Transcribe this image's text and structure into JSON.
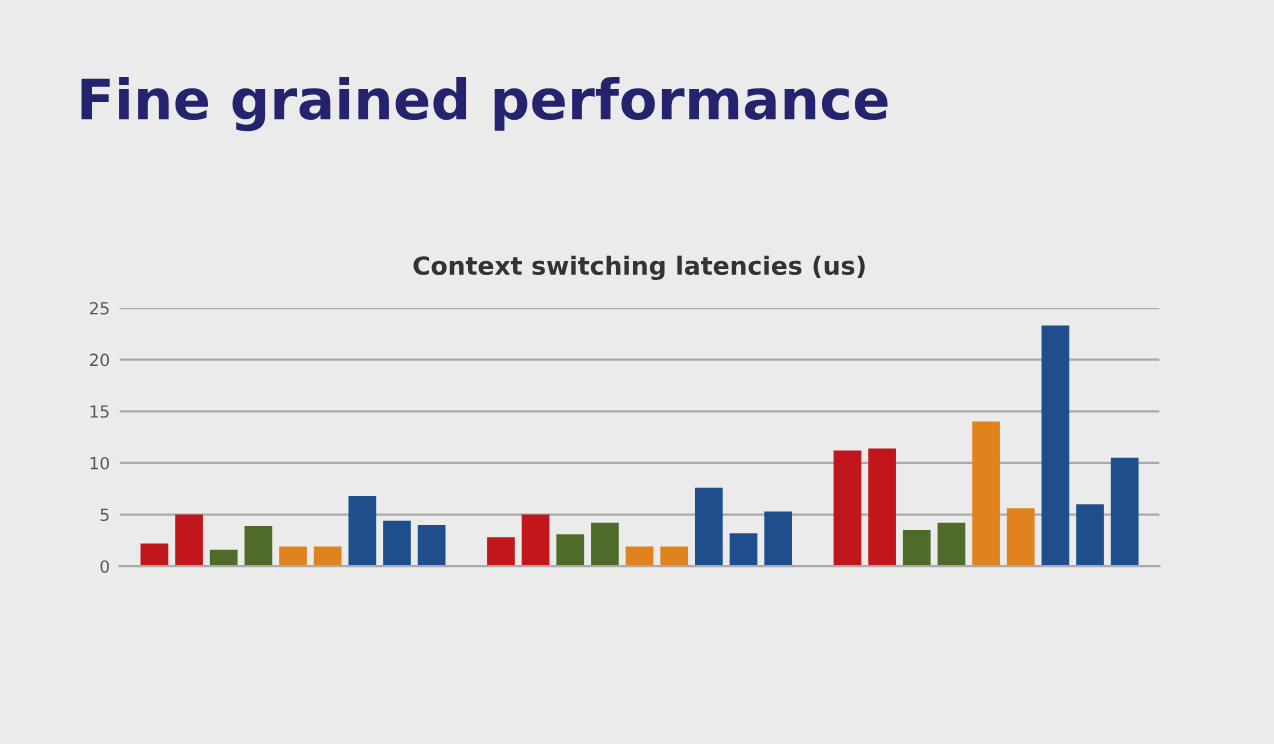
{
  "chart_data": {
    "type": "bar",
    "title": "Fine grained performance",
    "subtitle": "Context switching latencies (us)",
    "categories": [
      null,
      null,
      null
    ],
    "series": [
      {
        "color": "#c0161c",
        "values": [
          2.2,
          2.8,
          11.2
        ]
      },
      {
        "color": "#c0161c",
        "values": [
          5.0,
          5.0,
          11.4
        ]
      },
      {
        "color": "#4e6b2a",
        "values": [
          1.6,
          3.1,
          3.5
        ]
      },
      {
        "color": "#4e6b2a",
        "values": [
          3.9,
          4.2,
          4.2
        ]
      },
      {
        "color": "#e0821e",
        "values": [
          1.9,
          1.9,
          14.0
        ]
      },
      {
        "color": "#e0821e",
        "values": [
          1.9,
          1.9,
          5.6
        ]
      },
      {
        "color": "#1f4e8c",
        "values": [
          6.8,
          7.6,
          23.3
        ]
      },
      {
        "color": "#1f4e8c",
        "values": [
          4.4,
          3.2,
          6.0
        ]
      },
      {
        "color": "#1f4e8c",
        "values": [
          4.0,
          5.3,
          10.5
        ]
      }
    ],
    "ylim": [
      0,
      25
    ],
    "yticks": [
      0,
      5,
      10,
      15,
      20,
      25
    ],
    "grid": "y",
    "legend": false
  }
}
